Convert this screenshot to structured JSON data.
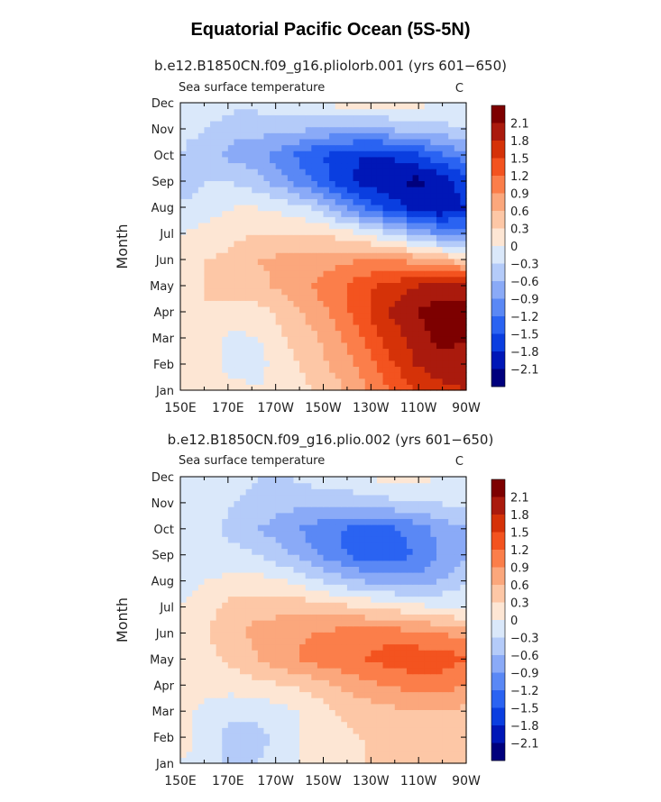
{
  "main_title": "Equatorial Pacific Ocean (5S-5N)",
  "colors": {
    "-2.1": "#00007d",
    "-1.8": "#0017b7",
    "-1.5": "#0a3ee0",
    "-1.2": "#2a63f2",
    "-0.9": "#5a88f5",
    "-0.6": "#8aaaf7",
    "-0.3": "#b4cbf9",
    "0": "#dae8fa",
    "0.3": "#fde6d4",
    "0.6": "#fdc7a6",
    "0.9": "#fba77c",
    "1.2": "#fb7e4a",
    "1.5": "#f3531f",
    "1.8": "#d53208",
    "2.1": "#aa1a0d",
    "max": "#7d0000"
  },
  "chart_data": [
    {
      "type": "heatmap",
      "title": "b.e12.B1850CN.f09_g16.pliolorb.001 (yrs 601−650)",
      "subtitle": "Sea surface temperature",
      "units": "C",
      "ylabel": "Month",
      "x_ticks": [
        "150E",
        "170E",
        "170W",
        "150W",
        "130W",
        "110W",
        "90W"
      ],
      "y_ticks": [
        "Jan",
        "Feb",
        "Mar",
        "Apr",
        "May",
        "Jun",
        "Jul",
        "Aug",
        "Sep",
        "Oct",
        "Nov",
        "Dec"
      ],
      "legend_levels": [
        "2.1",
        "1.8",
        "1.5",
        "1.2",
        "0.9",
        "0.6",
        "0.3",
        "0",
        "−0.3",
        "−0.6",
        "−0.9",
        "−1.2",
        "−1.5",
        "−1.8",
        "−2.1"
      ],
      "values": [
        [
          0.1,
          0.2,
          0.1,
          0.0,
          0.1,
          0.3,
          0.5,
          0.8,
          1.2,
          1.5,
          1.7,
          1.8
        ],
        [
          0.2,
          0.1,
          -0.1,
          -0.1,
          0.2,
          0.4,
          0.7,
          1.0,
          1.4,
          1.8,
          2.0,
          1.9
        ],
        [
          0.3,
          0.2,
          -0.1,
          0.0,
          0.3,
          0.5,
          0.8,
          1.2,
          1.6,
          1.9,
          2.2,
          2.1
        ],
        [
          0.3,
          0.3,
          0.2,
          0.2,
          0.4,
          0.7,
          1.0,
          1.4,
          1.8,
          2.1,
          2.3,
          2.2
        ],
        [
          0.2,
          0.3,
          0.4,
          0.5,
          0.7,
          0.9,
          1.1,
          1.4,
          1.6,
          1.8,
          1.9,
          1.9
        ],
        [
          0.1,
          0.3,
          0.4,
          0.6,
          0.7,
          0.7,
          0.8,
          0.9,
          0.9,
          0.8,
          0.6,
          0.4
        ],
        [
          0.0,
          0.1,
          0.2,
          0.3,
          0.3,
          0.3,
          0.2,
          0.0,
          -0.3,
          -0.6,
          -0.9,
          -1.0
        ],
        [
          -0.2,
          -0.1,
          0.0,
          0.0,
          -0.1,
          -0.3,
          -0.7,
          -1.2,
          -1.6,
          -1.9,
          -2.1,
          -1.8
        ],
        [
          -0.6,
          -0.3,
          -0.3,
          -0.5,
          -0.8,
          -1.2,
          -1.6,
          -1.9,
          -2.0,
          -2.2,
          -2.0,
          -1.6
        ],
        [
          -0.3,
          -0.5,
          -0.7,
          -0.8,
          -1.1,
          -1.4,
          -1.6,
          -1.8,
          -1.8,
          -1.6,
          -1.3,
          -1.0
        ],
        [
          -0.2,
          -0.3,
          -0.5,
          -0.5,
          -0.5,
          -0.6,
          -0.7,
          -0.7,
          -0.6,
          -0.5,
          -0.4,
          -0.3
        ],
        [
          -0.1,
          -0.1,
          -0.2,
          -0.2,
          -0.1,
          0.0,
          0.1,
          0.1,
          0.1,
          0.1,
          0.0,
          -0.1
        ]
      ]
    },
    {
      "type": "heatmap",
      "title": "b.e12.B1850CN.f09_g16.plio.002 (yrs 601−650)",
      "subtitle": "Sea surface temperature",
      "units": "C",
      "ylabel": "Month",
      "x_ticks": [
        "150E",
        "170E",
        "170W",
        "150W",
        "130W",
        "110W",
        "90W"
      ],
      "y_ticks": [
        "Jan",
        "Feb",
        "Mar",
        "Apr",
        "May",
        "Jun",
        "Jul",
        "Aug",
        "Sep",
        "Oct",
        "Nov",
        "Dec"
      ],
      "legend_levels": [
        "2.1",
        "1.8",
        "1.5",
        "1.2",
        "0.9",
        "0.6",
        "0.3",
        "0",
        "−0.3",
        "−0.6",
        "−0.9",
        "−1.2",
        "−1.5",
        "−1.8",
        "−2.1"
      ],
      "values": [
        [
          0.0,
          -0.1,
          -0.4,
          -0.3,
          -0.1,
          0.1,
          0.2,
          0.3,
          0.4,
          0.5,
          0.5,
          0.5
        ],
        [
          0.1,
          -0.1,
          -0.5,
          -0.4,
          -0.2,
          0.1,
          0.2,
          0.3,
          0.4,
          0.5,
          0.5,
          0.4
        ],
        [
          0.1,
          -0.1,
          -0.2,
          -0.2,
          -0.1,
          0.1,
          0.3,
          0.4,
          0.5,
          0.6,
          0.6,
          0.5
        ],
        [
          0.1,
          0.1,
          0.1,
          0.2,
          0.3,
          0.4,
          0.6,
          0.8,
          0.9,
          1.0,
          1.0,
          0.9
        ],
        [
          0.1,
          0.2,
          0.4,
          0.6,
          0.8,
          1.0,
          1.1,
          1.2,
          1.3,
          1.4,
          1.4,
          1.2
        ],
        [
          0.1,
          0.3,
          0.5,
          0.7,
          0.8,
          0.9,
          1.0,
          1.1,
          1.1,
          1.0,
          0.9,
          0.8
        ],
        [
          0.0,
          0.2,
          0.4,
          0.5,
          0.5,
          0.5,
          0.4,
          0.3,
          0.2,
          0.1,
          0.0,
          -0.1
        ],
        [
          -0.1,
          0.0,
          0.1,
          0.1,
          0.0,
          -0.2,
          -0.4,
          -0.6,
          -0.7,
          -0.8,
          -0.6,
          -0.3
        ],
        [
          -0.1,
          -0.2,
          -0.2,
          -0.3,
          -0.5,
          -0.8,
          -1.1,
          -1.4,
          -1.4,
          -1.2,
          -0.9,
          -0.6
        ],
        [
          -0.1,
          -0.2,
          -0.4,
          -0.6,
          -0.8,
          -1.0,
          -1.2,
          -1.3,
          -1.3,
          -1.1,
          -0.8,
          -0.6
        ],
        [
          -0.1,
          -0.1,
          -0.3,
          -0.4,
          -0.5,
          -0.5,
          -0.5,
          -0.5,
          -0.4,
          -0.3,
          -0.3,
          -0.2
        ],
        [
          0.0,
          -0.1,
          -0.2,
          -0.3,
          -0.3,
          -0.2,
          -0.1,
          0.0,
          0.1,
          0.1,
          0.0,
          -0.1
        ]
      ]
    }
  ]
}
